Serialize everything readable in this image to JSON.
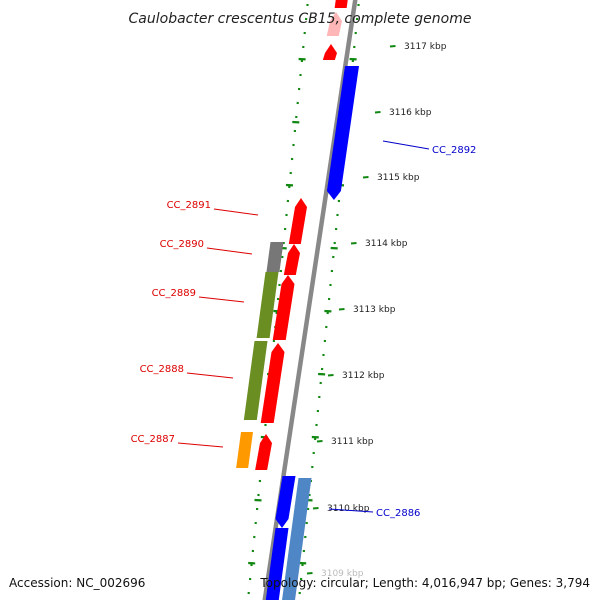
{
  "title": "Caulobacter crescentus CB15, complete genome",
  "accession": "Accession: NC_002696",
  "summary": "Topology: circular; Length: 4,016,947 bp; Genes: 3,794",
  "colors": {
    "forward_cds": "#ff0000",
    "reverse_cds": "#0000ff",
    "reverse_steel": "#4f86c6",
    "gray_feature": "#777777",
    "olive_feature": "#6b8e23",
    "orange_feature": "#ff9900",
    "pink_feature": "#ffb6b6",
    "backbone": "#888888",
    "dotted_ring": "#118811",
    "forward_label": "#dd0000",
    "reverse_label": "#0000cc"
  },
  "scale_ticks": [
    {
      "label": "3117 kbp"
    },
    {
      "label": "3116 kbp"
    },
    {
      "label": "3115 kbp"
    },
    {
      "label": "3114 kbp"
    },
    {
      "label": "3113 kbp"
    },
    {
      "label": "3112 kbp"
    },
    {
      "label": "3111 kbp"
    },
    {
      "label": "3110 kbp"
    },
    {
      "label": "3109 kbp"
    }
  ],
  "gene_labels": [
    {
      "name": "CC_2891",
      "strand": "forward"
    },
    {
      "name": "CC_2890",
      "strand": "forward"
    },
    {
      "name": "CC_2889",
      "strand": "forward"
    },
    {
      "name": "CC_2888",
      "strand": "forward"
    },
    {
      "name": "CC_2887",
      "strand": "forward"
    },
    {
      "name": "CC_2892",
      "strand": "reverse"
    },
    {
      "name": "CC_2886",
      "strand": "reverse"
    }
  ]
}
